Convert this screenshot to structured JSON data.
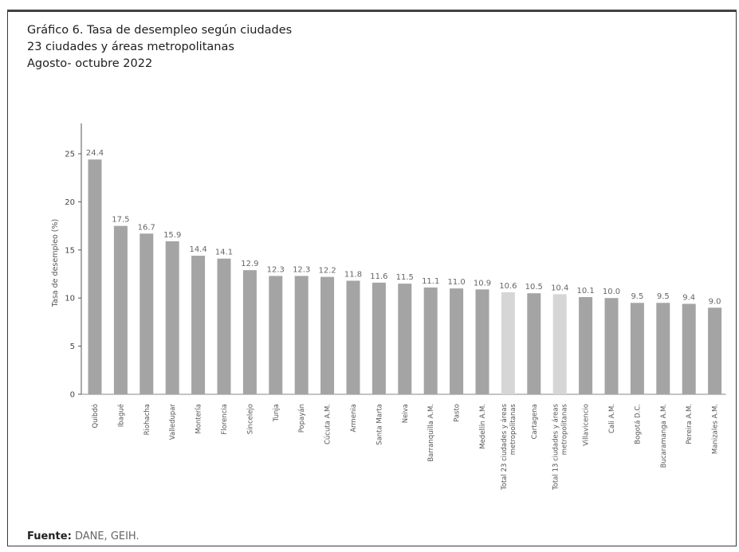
{
  "titles": {
    "line1": "Gráfico 6. Tasa de desempleo según ciudades",
    "line2": "23 ciudades y áreas metropolitanas",
    "line3": "Agosto- octubre 2022"
  },
  "source": {
    "label": "Fuente:",
    "value": "DANE, GEIH."
  },
  "colors": {
    "bar": "#a4a4a4",
    "bar_total": "#d6d6d6",
    "axis": "#555555"
  },
  "chart_data": {
    "type": "bar",
    "title": "",
    "ylabel": "Tasa de desempleo (%)",
    "xlabel": "",
    "ylim": [
      0,
      25
    ],
    "yticks": [
      0,
      5,
      10,
      15,
      20,
      25
    ],
    "grid": false,
    "categories": [
      [
        "Quibdó"
      ],
      [
        "Ibagué"
      ],
      [
        "Riohacha"
      ],
      [
        "Valledupar"
      ],
      [
        "Montería"
      ],
      [
        "Florencia"
      ],
      [
        "Sincelejo"
      ],
      [
        "Tunja"
      ],
      [
        "Popayán"
      ],
      [
        "Cúcuta A.M."
      ],
      [
        "Armenia"
      ],
      [
        "Santa Marta"
      ],
      [
        "Neiva"
      ],
      [
        "Barranquilla A.M."
      ],
      [
        "Pasto"
      ],
      [
        "Medellín A.M."
      ],
      [
        "Total 23 ciudades y áreas",
        "metropolitanas"
      ],
      [
        "Cartagena"
      ],
      [
        "Total 13 ciudades y áreas",
        "metropolitanas"
      ],
      [
        "Villavicencio"
      ],
      [
        "Cali A.M."
      ],
      [
        "Bogotá D.C."
      ],
      [
        "Bucaramanga A.M."
      ],
      [
        "Pereira A.M."
      ],
      [
        "Manizales A.M."
      ]
    ],
    "values": [
      24.4,
      17.5,
      16.7,
      15.9,
      14.4,
      14.1,
      12.9,
      12.3,
      12.3,
      12.2,
      11.8,
      11.6,
      11.5,
      11.1,
      11.0,
      10.9,
      10.6,
      10.5,
      10.4,
      10.1,
      10.0,
      9.5,
      9.5,
      9.4,
      9.0
    ],
    "highlight_indices": [
      16,
      18
    ]
  }
}
